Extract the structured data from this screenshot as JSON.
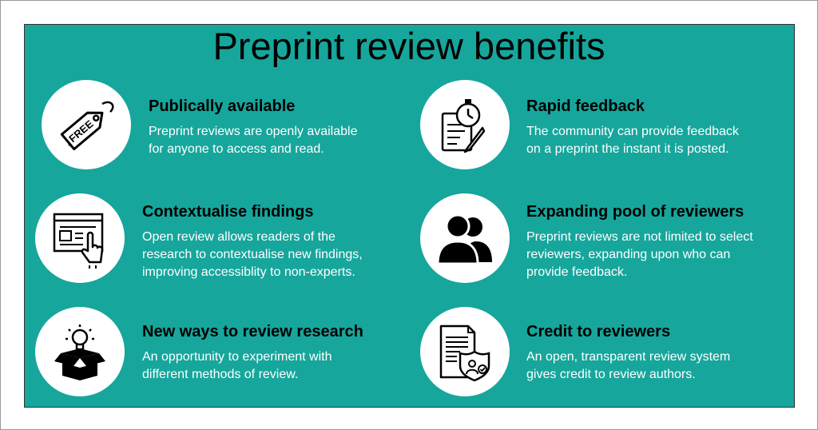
{
  "title": "Preprint review benefits",
  "items": [
    {
      "icon": "free-tag-icon",
      "title": "Publically available",
      "desc": "Preprint reviews are openly available\nfor anyone to access and read."
    },
    {
      "icon": "stopwatch-document-icon",
      "title": "Rapid feedback",
      "desc": "The community can provide feedback\non a preprint the instant it is posted."
    },
    {
      "icon": "web-page-click-icon",
      "title": "Contextualise findings",
      "desc": "Open review allows readers of the\nresearch to contextualise new findings,\nimproving accessiblity to non-experts."
    },
    {
      "icon": "users-icon",
      "title": "Expanding pool of reviewers",
      "desc": "Preprint reviews are not limited to select\nreviewers, expanding upon who can\nprovide feedback."
    },
    {
      "icon": "idea-box-icon",
      "title": "New ways to review research",
      "desc": "An opportunity to experiment with\ndifferent methods of review."
    },
    {
      "icon": "document-shield-icon",
      "title": "Credit to reviewers",
      "desc": "An open, transparent review system\ngives credit to review authors."
    }
  ],
  "tag_text": "FREE",
  "colors": {
    "panel": "#16a69c",
    "title_text": "#000000",
    "desc_text": "#ffffff"
  }
}
